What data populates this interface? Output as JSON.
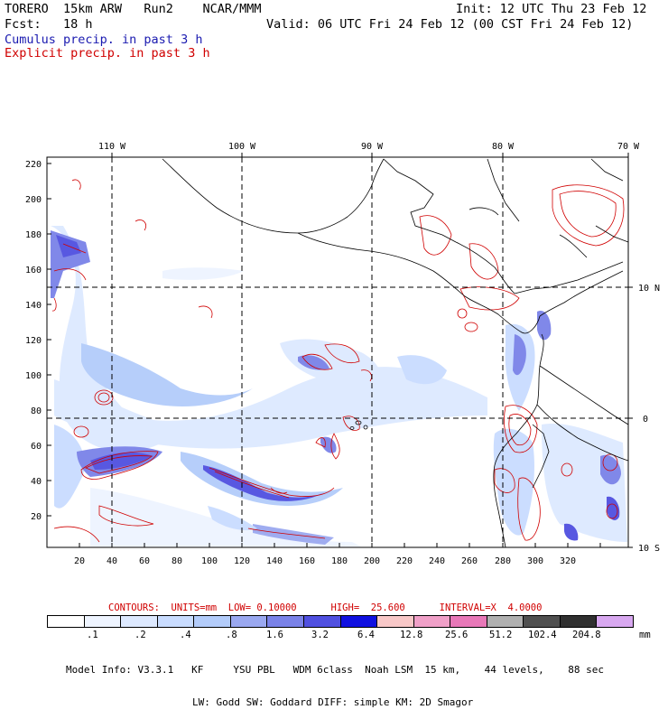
{
  "header": {
    "model": "TORERO  15km ARW   Run2    NCAR/MMM",
    "init": "Init: 12 UTC Thu 23 Feb 12",
    "fcst": "Fcst:   18 h",
    "valid": "Valid: 06 UTC Fri 24 Feb 12 (00 CST Fri 24 Feb 12)",
    "field1": "Cumulus precip. in past 3 h",
    "field2": "Explicit precip. in past 3 h"
  },
  "axes": {
    "top_lon": [
      "110 W",
      "100 W",
      "90 W",
      "80 W",
      "70 W"
    ],
    "right_lat": [
      "10 N",
      "0",
      "10 S"
    ],
    "x_ticks": [
      "20",
      "40",
      "60",
      "80",
      "100",
      "120",
      "140",
      "160",
      "180",
      "200",
      "220",
      "240",
      "260",
      "280",
      "300",
      "320"
    ],
    "y_ticks": [
      "220",
      "200",
      "180",
      "160",
      "140",
      "120",
      "100",
      "80",
      "60",
      "40",
      "20"
    ]
  },
  "contours": {
    "label": "CONTOURS:  UNITS=mm  LOW= 0.10000      HIGH=  25.600      INTERVAL=X  4.0000"
  },
  "legend": {
    "colors": [
      "#ffffff",
      "#eef4ff",
      "#dde9ff",
      "#c9dcff",
      "#b3ccfa",
      "#9aa8f0",
      "#7a82e8",
      "#5050e0",
      "#1010e0",
      "#f8c8c8",
      "#f0a0c8",
      "#e878b8",
      "#b0b0b0",
      "#505050",
      "#303030",
      "#d8a8f0"
    ],
    "labels": [
      ".1",
      ".2",
      ".4",
      ".8",
      "1.6",
      "3.2",
      "6.4",
      "12.8",
      "25.6",
      "51.2",
      "102.4",
      "204.8"
    ],
    "unit": "mm"
  },
  "model_info": {
    "line1": "Model Info: V3.3.1   KF     YSU PBL   WDM 6class  Noah LSM  15 km,    44 levels,    88 sec",
    "line2": "LW: Godd SW: Goddard DIFF: simple KM: 2D Smagor"
  },
  "colors": {
    "cumulus": "#1a1ab0",
    "explicit": "#d00000"
  }
}
